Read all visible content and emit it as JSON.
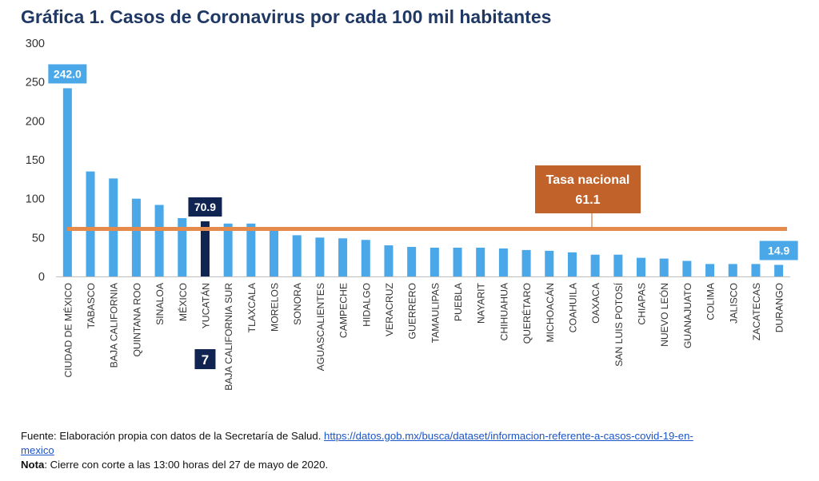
{
  "title": "Gráfica 1. Casos de Coronavirus por cada 100 mil habitantes",
  "chart_data": {
    "type": "bar",
    "categories": [
      "CIUDAD DE MÉXICO",
      "TABASCO",
      "BAJA CALIFORNIA",
      "QUINTANA ROO",
      "SINALOA",
      "MÉXICO",
      "YUCATÁN",
      "BAJA CALIFORNIA SUR",
      "TLAXCALA",
      "MORELOS",
      "SONORA",
      "AGUASCALIENTES",
      "CAMPECHE",
      "HIDALGO",
      "VERACRUZ",
      "GUERRERO",
      "TAMAULIPAS",
      "PUEBLA",
      "NAYARIT",
      "CHIHUAHUA",
      "QUERÉTARO",
      "MICHOACÁN",
      "COAHUILA",
      "OAXACA",
      "SAN LUIS POTOSÍ",
      "CHIAPAS",
      "NUEVO LEÓN",
      "GUANAJUATO",
      "COLIMA",
      "JALISCO",
      "ZACATECAS",
      "DURANGO"
    ],
    "values": [
      242.0,
      135,
      126,
      100,
      92,
      75,
      70.9,
      68,
      68,
      59,
      53,
      50,
      49,
      47,
      40,
      38,
      37,
      37,
      37,
      36,
      34,
      33,
      31,
      28,
      28,
      24,
      23,
      20,
      16,
      16,
      16,
      14.9
    ],
    "ylim": [
      0,
      300
    ],
    "yticks": [
      0,
      50,
      100,
      150,
      200,
      250,
      300
    ],
    "highlight_index": 6,
    "highlight_rank": "7",
    "data_labels": [
      {
        "index": 0,
        "text": "242.0"
      },
      {
        "index": 6,
        "text": "70.9"
      },
      {
        "index": 31,
        "text": "14.9"
      }
    ],
    "reference_line": {
      "value": 61.1,
      "label": "Tasa nacional",
      "value_label": "61.1"
    },
    "colors": {
      "bar": "#4aa7e8",
      "highlight": "#0f2451",
      "line": "#e58a4b",
      "ref_box": "#c1622a",
      "label_box": "#4aa7e8"
    },
    "grid": false
  },
  "footer": {
    "source_prefix": "Fuente: Elaboración propia con datos de la Secretaría de Salud. ",
    "source_link_line1": "https://datos.gob.mx/busca/dataset/informacion-referente-a-casos-covid-19-en-",
    "source_link_line2": "mexico",
    "note_label": "Nota",
    "note_text": ": Cierre con corte a las 13:00 horas del 27 de mayo de 2020."
  }
}
